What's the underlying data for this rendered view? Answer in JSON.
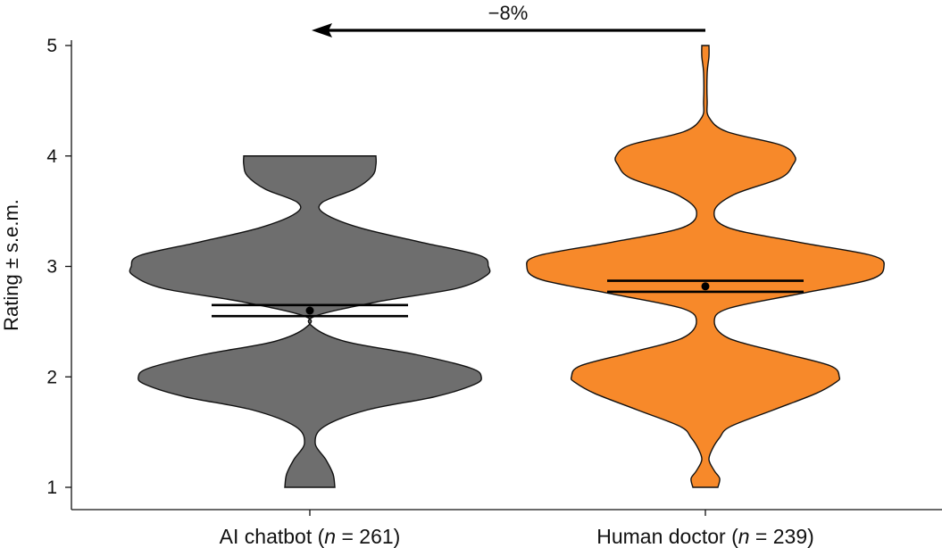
{
  "chart_data": {
    "type": "violin",
    "ylabel": "Rating ± s.e.m.",
    "ylim": [
      1,
      5
    ],
    "yticks": [
      1,
      2,
      3,
      4,
      5
    ],
    "grid": false,
    "annotation": {
      "label": "−8%",
      "from_group": "Human doctor",
      "to_group": "AI chatbot"
    },
    "groups": [
      {
        "label_prefix": "AI chatbot (",
        "label_n": "n",
        "label_suffix": " = 261)",
        "n": 261,
        "color": "#6e6e6e",
        "mean": 2.6,
        "sem_upper": 2.65,
        "sem_lower": 2.55,
        "density": [
          [
            1.0,
            0.14
          ],
          [
            1.12,
            0.13
          ],
          [
            1.25,
            0.09
          ],
          [
            1.4,
            0.03
          ],
          [
            1.55,
            0.08
          ],
          [
            1.7,
            0.32
          ],
          [
            1.82,
            0.7
          ],
          [
            1.93,
            0.92
          ],
          [
            2.0,
            0.96
          ],
          [
            2.08,
            0.9
          ],
          [
            2.2,
            0.6
          ],
          [
            2.32,
            0.2
          ],
          [
            2.45,
            0.02
          ],
          [
            2.55,
            0.03
          ],
          [
            2.68,
            0.38
          ],
          [
            2.8,
            0.82
          ],
          [
            2.92,
            0.99
          ],
          [
            3.0,
            1.0
          ],
          [
            3.1,
            0.95
          ],
          [
            3.22,
            0.62
          ],
          [
            3.35,
            0.28
          ],
          [
            3.48,
            0.08
          ],
          [
            3.58,
            0.07
          ],
          [
            3.7,
            0.25
          ],
          [
            3.82,
            0.35
          ],
          [
            3.92,
            0.37
          ],
          [
            4.0,
            0.37
          ]
        ]
      },
      {
        "label_prefix": "Human doctor (",
        "label_n": "n",
        "label_suffix": " = 239)",
        "n": 239,
        "color": "#f7892a",
        "mean": 2.82,
        "sem_upper": 2.87,
        "sem_lower": 2.77,
        "density": [
          [
            1.0,
            0.07
          ],
          [
            1.08,
            0.08
          ],
          [
            1.15,
            0.05
          ],
          [
            1.25,
            0.02
          ],
          [
            1.35,
            0.04
          ],
          [
            1.45,
            0.08
          ],
          [
            1.55,
            0.14
          ],
          [
            1.7,
            0.38
          ],
          [
            1.85,
            0.62
          ],
          [
            1.95,
            0.73
          ],
          [
            2.0,
            0.75
          ],
          [
            2.1,
            0.7
          ],
          [
            2.22,
            0.42
          ],
          [
            2.35,
            0.13
          ],
          [
            2.5,
            0.05
          ],
          [
            2.62,
            0.13
          ],
          [
            2.75,
            0.52
          ],
          [
            2.88,
            0.92
          ],
          [
            3.0,
            1.0
          ],
          [
            3.1,
            0.93
          ],
          [
            3.22,
            0.52
          ],
          [
            3.35,
            0.13
          ],
          [
            3.5,
            0.05
          ],
          [
            3.65,
            0.16
          ],
          [
            3.8,
            0.42
          ],
          [
            3.92,
            0.49
          ],
          [
            4.0,
            0.5
          ],
          [
            4.1,
            0.42
          ],
          [
            4.22,
            0.12
          ],
          [
            4.35,
            0.02
          ],
          [
            4.5,
            0.01
          ],
          [
            4.75,
            0.01
          ],
          [
            4.9,
            0.02
          ],
          [
            5.0,
            0.02
          ]
        ]
      }
    ]
  }
}
